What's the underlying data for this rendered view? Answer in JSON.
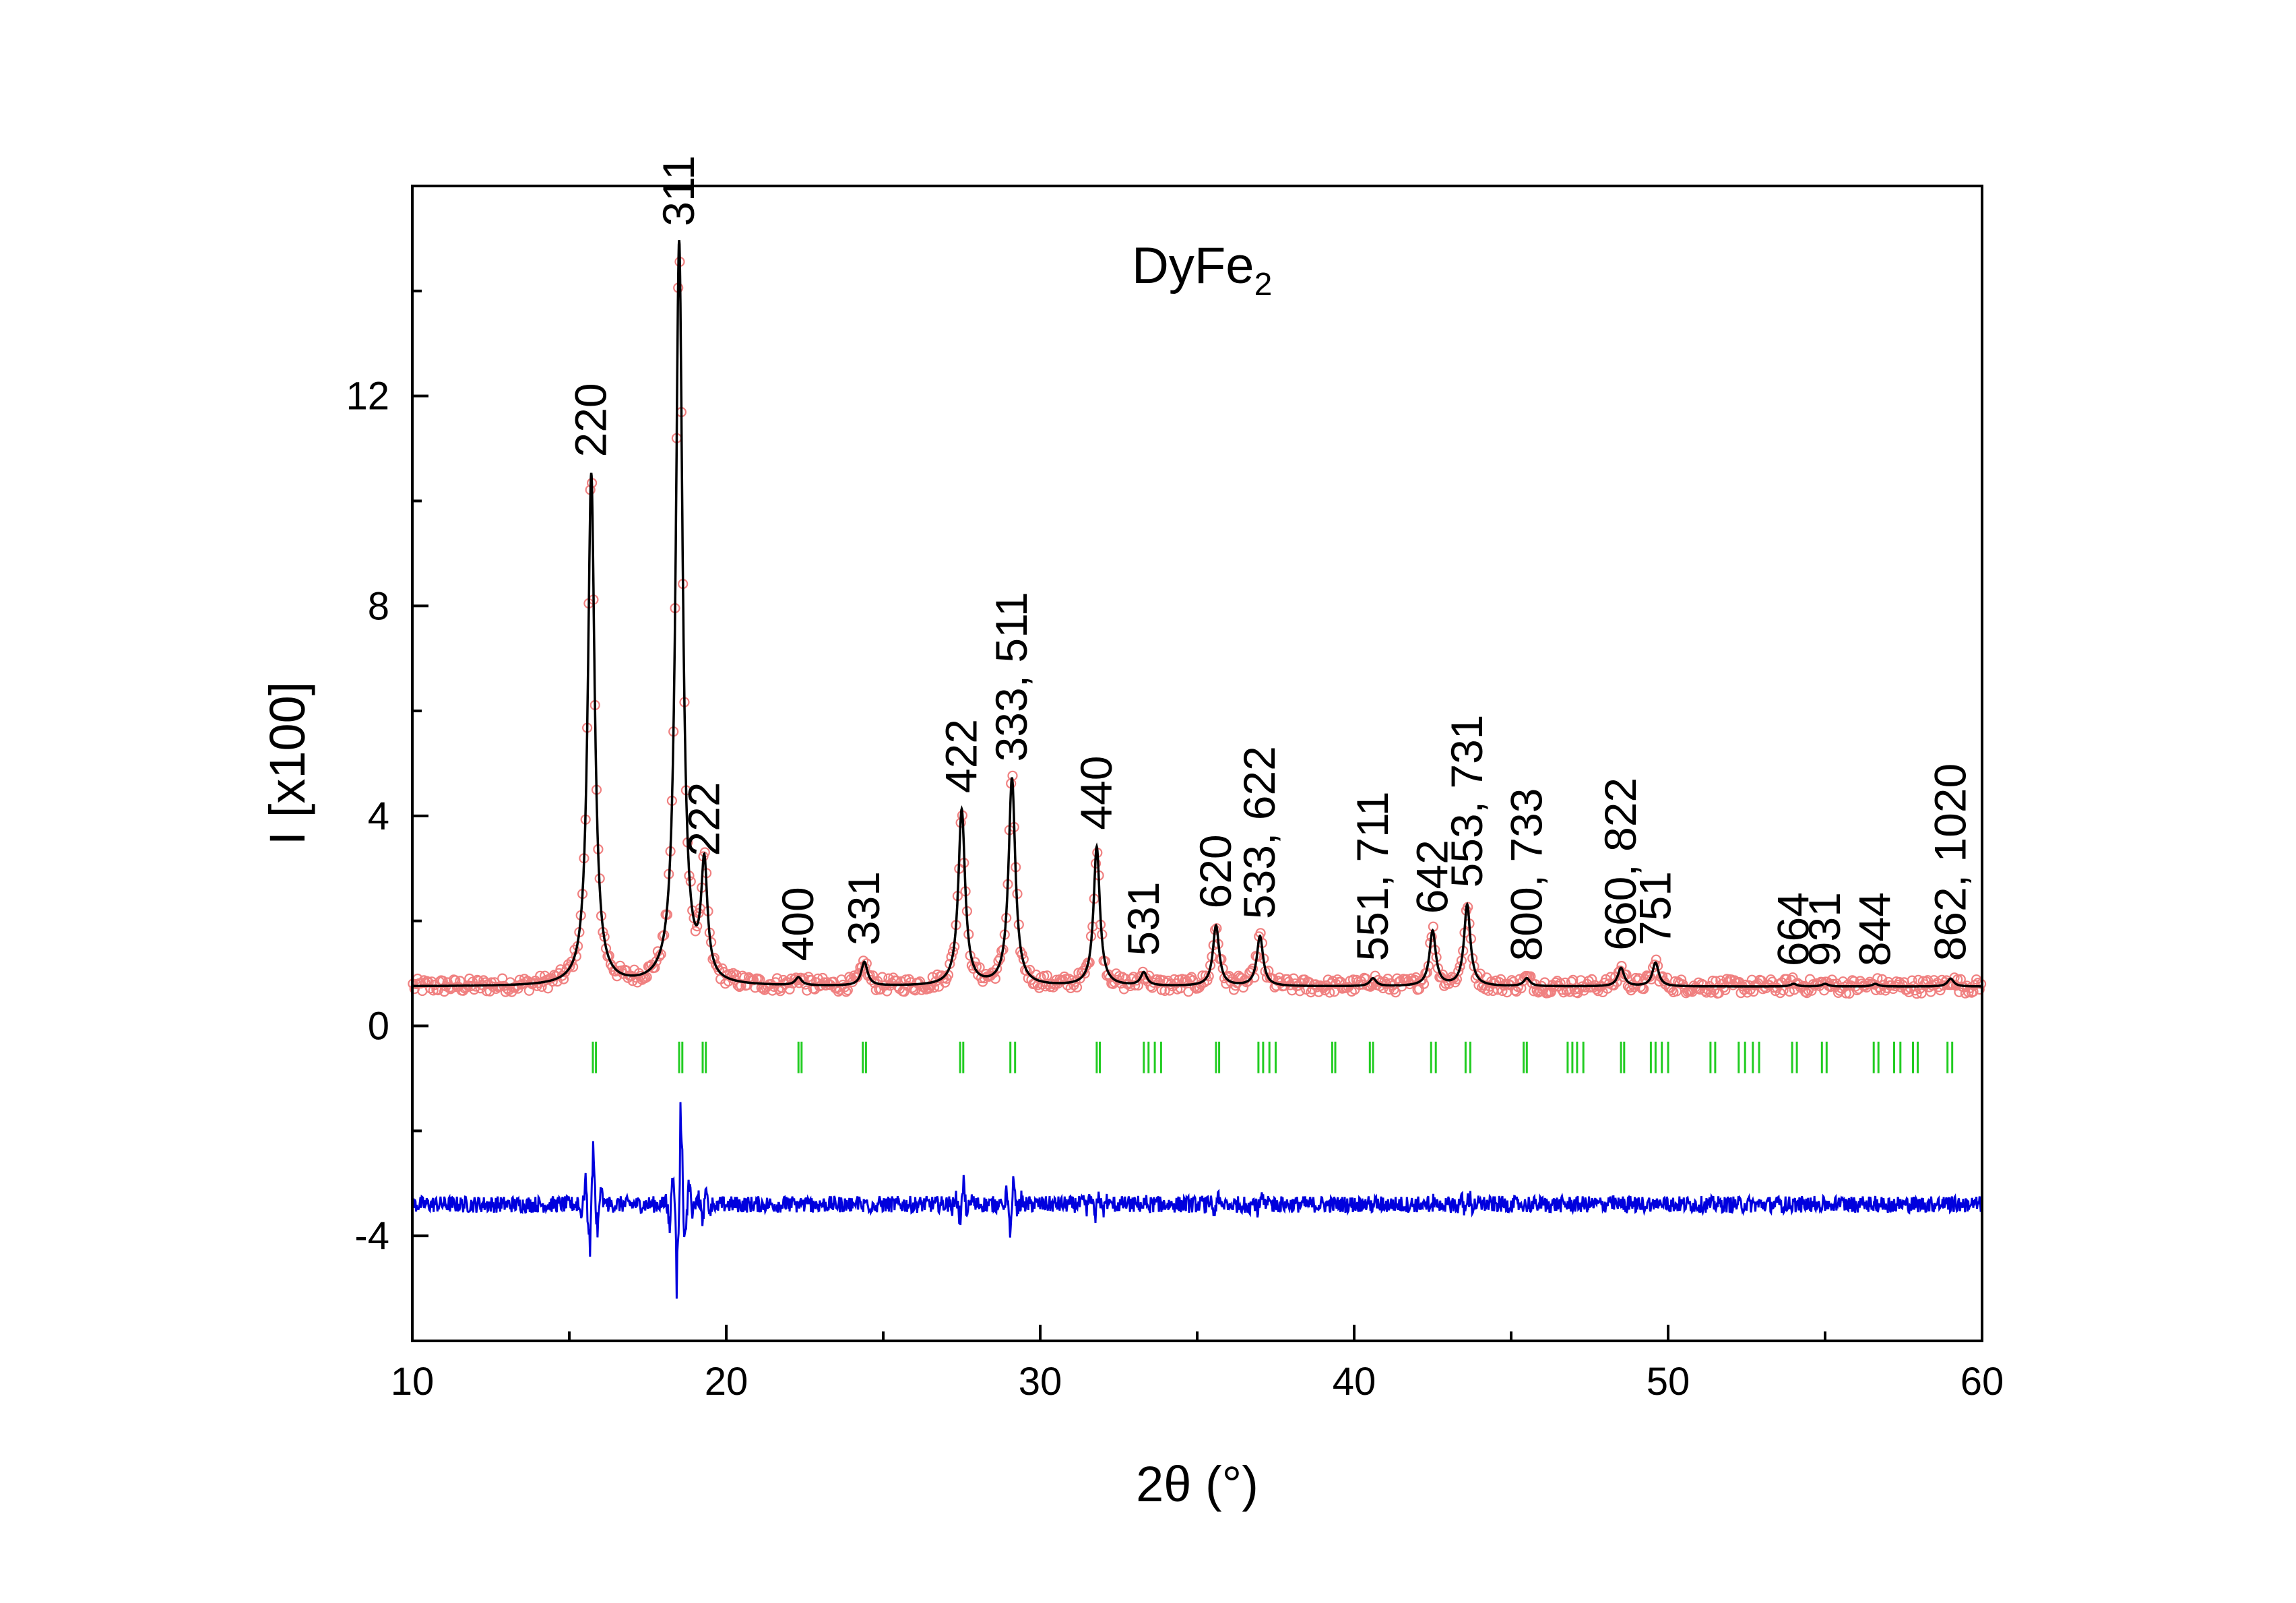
{
  "chart_data": {
    "type": "scatter",
    "title": "DyFe",
    "title_subscript": "2",
    "xlabel": "2θ (°)",
    "ylabel": "I [x100]",
    "xlim": [
      10,
      60
    ],
    "ylim": [
      -6,
      16
    ],
    "xticks": [
      10,
      20,
      30,
      40,
      50,
      60
    ],
    "yticks": [
      -4,
      0,
      4,
      8,
      12
    ],
    "xtick_labels": [
      "10",
      "20",
      "30",
      "40",
      "50",
      "60"
    ],
    "ytick_labels": [
      "-4",
      "0",
      "4",
      "8",
      "12"
    ],
    "grid": false,
    "legend": "none",
    "colors": {
      "observed": "#f08080",
      "calculated": "#000000",
      "bragg": "#22cc22",
      "difference": "#0000dd"
    },
    "background_observed": 0.75,
    "background_difference": -3.4,
    "peaks": [
      {
        "x": 15.7,
        "y": 10.5,
        "label": "220"
      },
      {
        "x": 18.5,
        "y": 14.9,
        "label": "311"
      },
      {
        "x": 19.3,
        "y": 2.9,
        "label": "222"
      },
      {
        "x": 22.3,
        "y": 0.9,
        "label": "400"
      },
      {
        "x": 24.4,
        "y": 1.2,
        "label": "331"
      },
      {
        "x": 27.5,
        "y": 4.1,
        "label": "422"
      },
      {
        "x": 29.1,
        "y": 4.7,
        "label": "333, 511"
      },
      {
        "x": 31.8,
        "y": 3.4,
        "label": "440"
      },
      {
        "x": 33.3,
        "y": 1.0,
        "label": "531"
      },
      {
        "x": 35.6,
        "y": 1.9,
        "label": "620"
      },
      {
        "x": 37.0,
        "y": 1.7,
        "label": "533, 622"
      },
      {
        "x": 40.6,
        "y": 0.9,
        "label": "551, 711"
      },
      {
        "x": 42.5,
        "y": 1.8,
        "label": "642"
      },
      {
        "x": 43.6,
        "y": 2.3,
        "label": "553, 731"
      },
      {
        "x": 45.5,
        "y": 0.9,
        "label": "800, 733"
      },
      {
        "x": 48.5,
        "y": 1.1,
        "label": "660, 822"
      },
      {
        "x": 49.6,
        "y": 1.2,
        "label": "751"
      },
      {
        "x": 54.0,
        "y": 0.8,
        "label": "664"
      },
      {
        "x": 55.0,
        "y": 0.8,
        "label": "931"
      },
      {
        "x": 56.6,
        "y": 0.8,
        "label": "844"
      },
      {
        "x": 59.0,
        "y": 0.9,
        "label": "862, 1020"
      }
    ],
    "bragg_positions": [
      15.75,
      15.85,
      18.5,
      18.6,
      19.25,
      19.35,
      22.3,
      22.4,
      24.35,
      24.45,
      27.45,
      27.55,
      29.05,
      29.2,
      31.8,
      31.9,
      33.3,
      33.45,
      33.65,
      33.85,
      35.6,
      35.7,
      36.95,
      37.1,
      37.3,
      37.5,
      39.3,
      39.4,
      40.5,
      40.6,
      42.45,
      42.6,
      43.55,
      43.7,
      45.4,
      45.5,
      46.8,
      46.95,
      47.1,
      47.3,
      48.5,
      48.6,
      49.45,
      49.6,
      49.8,
      50.0,
      51.35,
      51.5,
      52.25,
      52.45,
      52.7,
      52.9,
      53.95,
      54.1,
      54.9,
      55.05,
      56.55,
      56.7,
      57.2,
      57.4,
      57.8,
      57.95,
      58.9,
      59.05
    ]
  }
}
